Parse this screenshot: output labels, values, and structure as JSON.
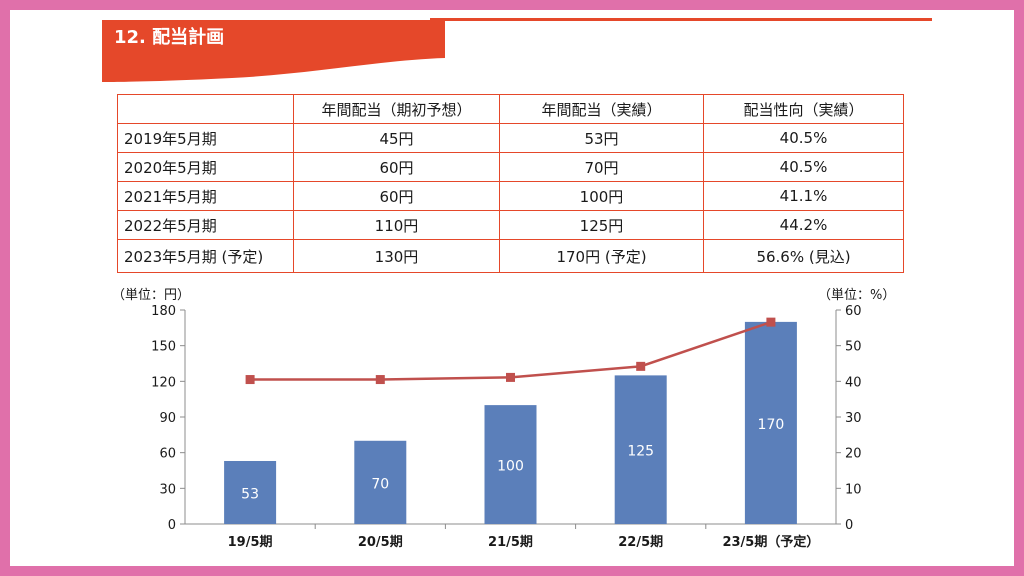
{
  "slide_title": "12. 配当計画",
  "table": {
    "headers": [
      "",
      "年間配当（期初予想）",
      "年間配当（実績）",
      "配当性向（実績）"
    ],
    "rows": [
      [
        "2019年5月期",
        "45円",
        "53円",
        "40.5%"
      ],
      [
        "2020年5月期",
        "60円",
        "70円",
        "40.5%"
      ],
      [
        "2021年5月期",
        "60円",
        "100円",
        "41.1%"
      ],
      [
        "2022年5月期",
        "110円",
        "125円",
        "44.2%"
      ],
      [
        "2023年5月期 (予定)",
        "130円",
        "170円 (予定)",
        "56.6% (見込)"
      ]
    ]
  },
  "colors": {
    "accent": "#e5482a",
    "bar": "#5b7fba",
    "line": "#c0504d",
    "frame": "#e070aa"
  },
  "chart_data": {
    "type": "bar",
    "title": "",
    "categories": [
      "19/5期",
      "20/5期",
      "21/5期",
      "22/5期",
      "23/5期（予定）"
    ],
    "left_unit": "（単位：円）",
    "right_unit": "（単位：%）",
    "ylim": [
      0,
      180
    ],
    "y_ticks": [
      0,
      30,
      60,
      90,
      120,
      150,
      180
    ],
    "y2lim": [
      0,
      60
    ],
    "y2_ticks": [
      0,
      10,
      20,
      30,
      40,
      50,
      60
    ],
    "grid": false,
    "series": [
      {
        "type": "bar",
        "axis": "left",
        "values": [
          53,
          70,
          100,
          125,
          170
        ],
        "labels": [
          "53",
          "70",
          "100",
          "125",
          "170"
        ]
      },
      {
        "type": "line",
        "axis": "right",
        "values": [
          40.5,
          40.5,
          41.1,
          44.2,
          56.6
        ]
      }
    ]
  }
}
